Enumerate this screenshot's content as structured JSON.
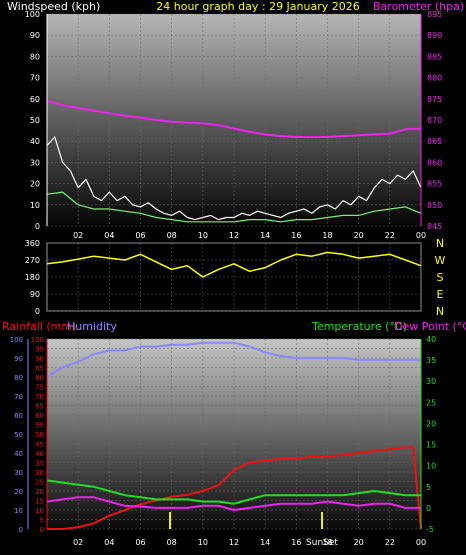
{
  "header": {
    "windspeed_label": "Windspeed (kph)",
    "title": "24 hour graph day : 29 January 2026",
    "barometer_label": "Barometer (hpa)"
  },
  "x_ticks": [
    "02",
    "04",
    "06",
    "08",
    "10",
    "12",
    "14",
    "16",
    "18",
    "20",
    "22",
    "00"
  ],
  "compass": [
    "N",
    "W",
    "S",
    "E",
    "N"
  ],
  "labels": {
    "rainfall": "Rainfall (mm)",
    "humidity": "Humidity",
    "temperature": "Temperature (°C)",
    "dew_point": "Dew Point (°C)",
    "sunset": "SunSet"
  },
  "colors": {
    "wind_gust": "#ffffff",
    "wind_avg": "#77ee77",
    "barometer": "#ee22ee",
    "direction": "#ffff00",
    "rainfall": "#ee1111",
    "humidity": "#8888ff",
    "temperature": "#22dd22",
    "dew_point": "#ee22ee"
  },
  "chart_data": [
    {
      "type": "line",
      "name": "wind-barometer",
      "x_ticks": [
        "02",
        "04",
        "06",
        "08",
        "10",
        "12",
        "14",
        "16",
        "18",
        "20",
        "22",
        "00"
      ],
      "y_left": {
        "label": "Windspeed (kph)",
        "ylim": [
          0,
          100
        ],
        "ticks": [
          0,
          10,
          20,
          30,
          40,
          50,
          60,
          70,
          80,
          90,
          100
        ]
      },
      "y_right": {
        "label": "Barometer (hpa)",
        "ylim": [
          845,
          895
        ],
        "ticks": [
          845,
          850,
          855,
          860,
          865,
          870,
          875,
          880,
          885,
          890,
          895
        ]
      },
      "series": [
        {
          "name": "wind gust",
          "axis": "left",
          "x": [
            0,
            0.5,
            1,
            1.5,
            2,
            2.5,
            3,
            3.5,
            4,
            4.5,
            5,
            5.5,
            6,
            6.5,
            7,
            7.5,
            8,
            8.5,
            9,
            9.5,
            10,
            10.5,
            11,
            11.5,
            12,
            12.5,
            13,
            13.5,
            14,
            14.5,
            15,
            15.5,
            16,
            16.5,
            17,
            17.5,
            18,
            18.5,
            19,
            19.5,
            20,
            20.5,
            21,
            21.5,
            22,
            22.5,
            23,
            23.5,
            24
          ],
          "values": [
            38,
            42,
            30,
            26,
            18,
            22,
            14,
            12,
            16,
            12,
            14,
            10,
            9,
            11,
            8,
            6,
            5,
            7,
            4,
            3,
            4,
            5,
            3,
            4,
            4,
            6,
            5,
            7,
            6,
            5,
            4,
            6,
            7,
            8,
            6,
            9,
            10,
            8,
            12,
            10,
            14,
            12,
            18,
            22,
            20,
            24,
            22,
            26,
            18
          ]
        },
        {
          "name": "wind average",
          "axis": "left",
          "x": [
            0,
            1,
            2,
            3,
            4,
            5,
            6,
            7,
            8,
            9,
            10,
            11,
            12,
            13,
            14,
            15,
            16,
            17,
            18,
            19,
            20,
            21,
            22,
            23,
            24
          ],
          "values": [
            15,
            16,
            10,
            8,
            8,
            7,
            6,
            4,
            3,
            2,
            2,
            2,
            2,
            3,
            3,
            2,
            3,
            3,
            4,
            5,
            5,
            7,
            8,
            9,
            6
          ]
        },
        {
          "name": "barometer",
          "axis": "right",
          "x": [
            0,
            1,
            2,
            3,
            4,
            5,
            6,
            7,
            8,
            9,
            10,
            11,
            12,
            13,
            14,
            15,
            16,
            17,
            18,
            19,
            20,
            21,
            22,
            23,
            24
          ],
          "values": [
            874.5,
            873.5,
            872.8,
            872.2,
            871.6,
            871.0,
            870.6,
            870.0,
            869.6,
            869.4,
            869.2,
            868.8,
            868.0,
            867.2,
            866.6,
            866.2,
            866.0,
            866.0,
            866.0,
            866.2,
            866.4,
            866.6,
            866.8,
            867.8,
            868.0
          ]
        }
      ]
    },
    {
      "type": "line",
      "name": "wind-direction",
      "x_ticks": [
        "02",
        "04",
        "06",
        "08",
        "10",
        "12",
        "14",
        "16",
        "18",
        "20",
        "22",
        "00"
      ],
      "y": {
        "ylim": [
          0,
          360
        ],
        "ticks": [
          0,
          90,
          180,
          270,
          360
        ]
      },
      "series": [
        {
          "name": "wind direction",
          "x": [
            0,
            1,
            2,
            3,
            4,
            5,
            6,
            7,
            8,
            9,
            10,
            11,
            12,
            13,
            14,
            15,
            16,
            17,
            18,
            19,
            20,
            21,
            22,
            23,
            24
          ],
          "values": [
            250,
            260,
            275,
            290,
            280,
            270,
            300,
            260,
            220,
            240,
            180,
            220,
            250,
            210,
            230,
            270,
            300,
            290,
            310,
            300,
            280,
            290,
            300,
            270,
            240
          ]
        }
      ]
    },
    {
      "type": "line",
      "name": "rain-humidity-temperature",
      "x_ticks": [
        "02",
        "04",
        "06",
        "08",
        "10",
        "12",
        "14",
        "16",
        "18",
        "20",
        "22",
        "00"
      ],
      "y_left_outer": {
        "label": "Humidity",
        "ylim": [
          0,
          100
        ],
        "ticks": [
          0,
          10,
          20,
          30,
          40,
          50,
          60,
          70,
          80,
          90,
          100
        ]
      },
      "y_left_inner": {
        "label": "Rainfall (mm)",
        "ylim": [
          0,
          100
        ],
        "ticks": [
          0,
          5,
          10,
          15,
          20,
          25,
          30,
          35,
          40,
          45,
          50,
          55,
          60,
          65,
          70,
          75,
          80,
          85,
          90,
          95,
          100
        ]
      },
      "y_right": {
        "label": "Temperature (°C)",
        "ylim": [
          -5,
          40
        ],
        "ticks": [
          -5,
          0,
          5,
          10,
          15,
          20,
          25,
          30,
          35,
          40
        ]
      },
      "series": [
        {
          "name": "humidity",
          "axis": "left_outer",
          "x": [
            0,
            1,
            2,
            3,
            4,
            5,
            6,
            7,
            8,
            9,
            10,
            11,
            12,
            13,
            14,
            15,
            16,
            17,
            18,
            19,
            20,
            21,
            22,
            23,
            24
          ],
          "values": [
            80,
            85,
            88,
            92,
            94,
            94,
            96,
            96,
            97,
            97,
            98,
            98,
            98,
            96,
            93,
            91,
            90,
            90,
            90,
            90,
            89,
            89,
            89,
            89,
            89
          ]
        },
        {
          "name": "rainfall",
          "axis": "left_inner",
          "x": [
            0,
            1,
            2,
            3,
            4,
            5,
            6,
            7,
            8,
            9,
            10,
            11,
            12,
            13,
            14,
            15,
            16,
            17,
            18,
            19,
            20,
            21,
            22,
            23,
            23.5,
            24
          ],
          "values": [
            0,
            0,
            1,
            3,
            7,
            10,
            13,
            15,
            17,
            18,
            20,
            23,
            31,
            35,
            36,
            37,
            37,
            38,
            38,
            39,
            40,
            41,
            42,
            43,
            43,
            0
          ]
        },
        {
          "name": "temperature",
          "axis": "right",
          "x": [
            0,
            1,
            2,
            3,
            4,
            5,
            6,
            7,
            8,
            9,
            10,
            11,
            12,
            13,
            14,
            15,
            16,
            17,
            18,
            19,
            20,
            21,
            22,
            23,
            24
          ],
          "values": [
            6.5,
            6,
            5.5,
            5,
            4,
            3,
            2.5,
            2,
            2,
            2,
            1.5,
            1.5,
            1,
            2,
            3,
            3,
            3,
            3,
            3,
            3,
            3.5,
            4,
            3.5,
            3,
            3
          ]
        },
        {
          "name": "dew point",
          "axis": "right",
          "x": [
            0,
            1,
            2,
            3,
            4,
            5,
            6,
            7,
            8,
            9,
            10,
            11,
            12,
            13,
            14,
            15,
            16,
            17,
            18,
            19,
            20,
            21,
            22,
            23,
            24
          ],
          "values": [
            1.5,
            2,
            2.5,
            2.5,
            1.5,
            0.5,
            0.3,
            0,
            0,
            0,
            0.5,
            0.5,
            -0.5,
            0,
            0.5,
            1,
            1,
            1,
            1.5,
            1,
            0.5,
            1,
            1,
            0,
            0
          ]
        }
      ]
    }
  ]
}
